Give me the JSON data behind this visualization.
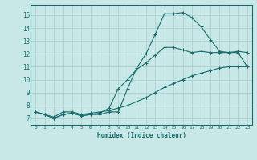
{
  "xlabel": "Humidex (Indice chaleur)",
  "bg_color": "#c8e8e8",
  "grid_color": "#aacccc",
  "line_color": "#1a6b6b",
  "axis_color": "#1a6b6b",
  "xlim": [
    -0.5,
    23.5
  ],
  "ylim": [
    6.5,
    15.8
  ],
  "xticks": [
    0,
    1,
    2,
    3,
    4,
    5,
    6,
    7,
    8,
    9,
    10,
    11,
    12,
    13,
    14,
    15,
    16,
    17,
    18,
    19,
    20,
    21,
    22,
    23
  ],
  "yticks": [
    7,
    8,
    9,
    10,
    11,
    12,
    13,
    14,
    15
  ],
  "line1_x": [
    0,
    1,
    2,
    3,
    4,
    5,
    6,
    7,
    8,
    9,
    10,
    11,
    12,
    13,
    14,
    15,
    16,
    17,
    18,
    19,
    20,
    21,
    22,
    23
  ],
  "line1_y": [
    7.5,
    7.3,
    7.0,
    7.3,
    7.4,
    7.2,
    7.3,
    7.3,
    7.5,
    7.5,
    9.3,
    10.9,
    12.0,
    13.5,
    15.1,
    15.1,
    15.2,
    14.8,
    14.1,
    13.1,
    12.2,
    12.1,
    12.1,
    11.0
  ],
  "line2_x": [
    0,
    1,
    2,
    3,
    4,
    5,
    6,
    7,
    8,
    9,
    10,
    11,
    12,
    13,
    14,
    15,
    16,
    17,
    18,
    19,
    20,
    21,
    22,
    23
  ],
  "line2_y": [
    7.5,
    7.3,
    7.0,
    7.3,
    7.4,
    7.2,
    7.3,
    7.4,
    7.8,
    9.3,
    10.0,
    10.8,
    11.3,
    11.9,
    12.5,
    12.5,
    12.3,
    12.1,
    12.2,
    12.1,
    12.1,
    12.1,
    12.2,
    12.1
  ],
  "line3_x": [
    0,
    1,
    2,
    3,
    4,
    5,
    6,
    7,
    8,
    9,
    10,
    11,
    12,
    13,
    14,
    15,
    16,
    17,
    18,
    19,
    20,
    21,
    22,
    23
  ],
  "line3_y": [
    7.5,
    7.3,
    7.1,
    7.5,
    7.5,
    7.3,
    7.4,
    7.5,
    7.6,
    7.8,
    8.0,
    8.3,
    8.6,
    9.0,
    9.4,
    9.7,
    10.0,
    10.3,
    10.5,
    10.7,
    10.9,
    11.0,
    11.0,
    11.0
  ]
}
